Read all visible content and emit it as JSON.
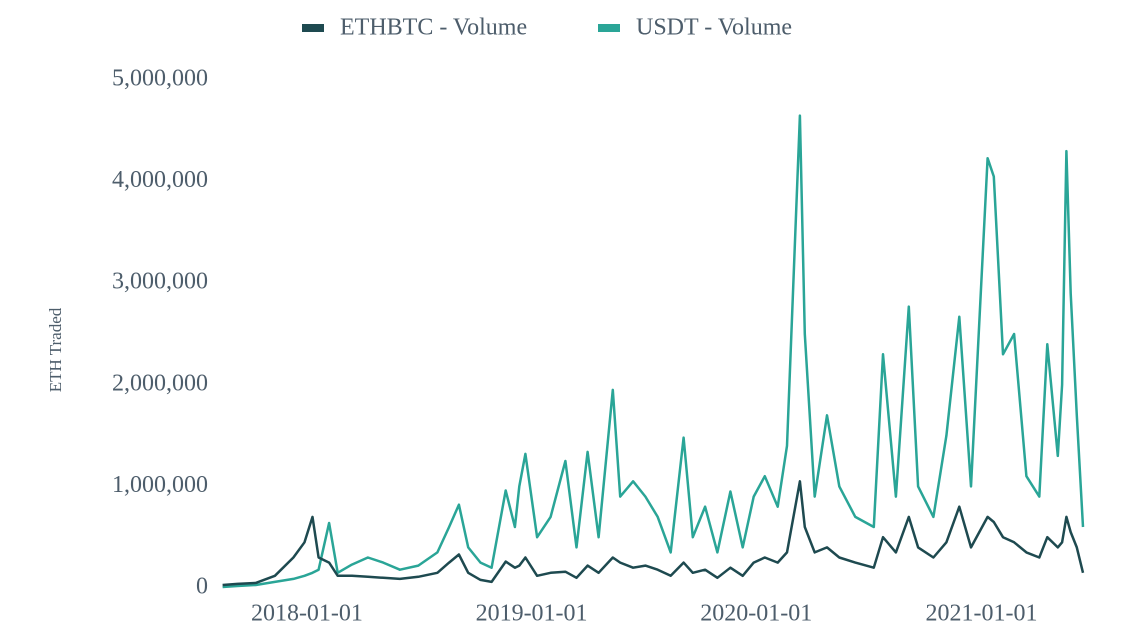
{
  "chart_data": {
    "type": "line",
    "y_label": "ETH Traded",
    "x": [
      "2017-08-17",
      "2017-09-10",
      "2017-10-10",
      "2017-11-10",
      "2017-12-10",
      "2017-12-28",
      "2018-01-10",
      "2018-01-20",
      "2018-02-06",
      "2018-02-20",
      "2018-03-15",
      "2018-04-10",
      "2018-05-05",
      "2018-06-01",
      "2018-07-01",
      "2018-08-01",
      "2018-08-20",
      "2018-09-05",
      "2018-09-20",
      "2018-10-10",
      "2018-10-28",
      "2018-11-20",
      "2018-12-05",
      "2018-12-12",
      "2018-12-22",
      "2019-01-10",
      "2019-02-01",
      "2019-02-25",
      "2019-03-15",
      "2019-04-02",
      "2019-04-20",
      "2019-05-13",
      "2019-05-25",
      "2019-06-15",
      "2019-07-05",
      "2019-07-25",
      "2019-08-15",
      "2019-09-05",
      "2019-09-20",
      "2019-10-10",
      "2019-10-30",
      "2019-11-20",
      "2019-12-10",
      "2019-12-28",
      "2020-01-15",
      "2020-02-05",
      "2020-02-20",
      "2020-03-12",
      "2020-03-20",
      "2020-04-05",
      "2020-04-25",
      "2020-05-15",
      "2020-06-10",
      "2020-07-10",
      "2020-07-25",
      "2020-08-15",
      "2020-09-05",
      "2020-09-20",
      "2020-10-15",
      "2020-11-05",
      "2020-11-26",
      "2020-12-15",
      "2021-01-11",
      "2021-01-21",
      "2021-02-05",
      "2021-02-23",
      "2021-03-15",
      "2021-04-05",
      "2021-04-18",
      "2021-05-05",
      "2021-05-12",
      "2021-05-19",
      "2021-05-26",
      "2021-06-05",
      "2021-06-15"
    ],
    "series": [
      {
        "name": "ETHBTC - Volume",
        "color": "#1e4a50",
        "values": [
          30000,
          40000,
          50000,
          120000,
          300000,
          450000,
          700000,
          300000,
          250000,
          120000,
          120000,
          110000,
          100000,
          90000,
          110000,
          150000,
          250000,
          330000,
          150000,
          80000,
          60000,
          260000,
          200000,
          220000,
          300000,
          120000,
          150000,
          160000,
          100000,
          220000,
          150000,
          300000,
          250000,
          200000,
          220000,
          180000,
          120000,
          250000,
          150000,
          180000,
          100000,
          200000,
          120000,
          250000,
          300000,
          250000,
          350000,
          1050000,
          600000,
          350000,
          400000,
          300000,
          250000,
          200000,
          500000,
          350000,
          700000,
          400000,
          300000,
          450000,
          800000,
          400000,
          700000,
          650000,
          500000,
          450000,
          350000,
          300000,
          500000,
          400000,
          450000,
          700000,
          550000,
          400000,
          150000
        ]
      },
      {
        "name": "USDT - Volume",
        "color": "#2aa597",
        "values": [
          10000,
          20000,
          30000,
          60000,
          90000,
          120000,
          150000,
          180000,
          640000,
          150000,
          230000,
          300000,
          250000,
          180000,
          220000,
          350000,
          600000,
          820000,
          400000,
          250000,
          200000,
          960000,
          600000,
          1000000,
          1320000,
          500000,
          700000,
          1250000,
          400000,
          1340000,
          500000,
          1950000,
          900000,
          1050000,
          900000,
          700000,
          350000,
          1480000,
          500000,
          800000,
          350000,
          950000,
          400000,
          900000,
          1100000,
          800000,
          1400000,
          4650000,
          2500000,
          900000,
          1700000,
          1000000,
          700000,
          600000,
          2300000,
          900000,
          2770000,
          1000000,
          700000,
          1500000,
          2670000,
          1000000,
          4230000,
          4050000,
          2300000,
          2500000,
          1100000,
          900000,
          2400000,
          1300000,
          2000000,
          4300000,
          2900000,
          1700000,
          600000
        ]
      }
    ],
    "xlim": [
      "2017-08-16",
      "2021-06-15"
    ],
    "xticks": [
      "2018-01-01",
      "2019-01-01",
      "2020-01-01",
      "2021-01-01"
    ],
    "ylim": [
      0,
      5000000
    ],
    "yticks": [
      0,
      {
        "value": 1000000,
        "label": "1,000,000"
      },
      {
        "value": 2000000,
        "label": "2,000,000"
      },
      {
        "value": 3000000,
        "label": "3,000,000"
      },
      {
        "value": 4000000,
        "label": "4,000,000"
      },
      {
        "value": 5000000,
        "label": "5,000,000"
      }
    ],
    "legend": "top"
  }
}
